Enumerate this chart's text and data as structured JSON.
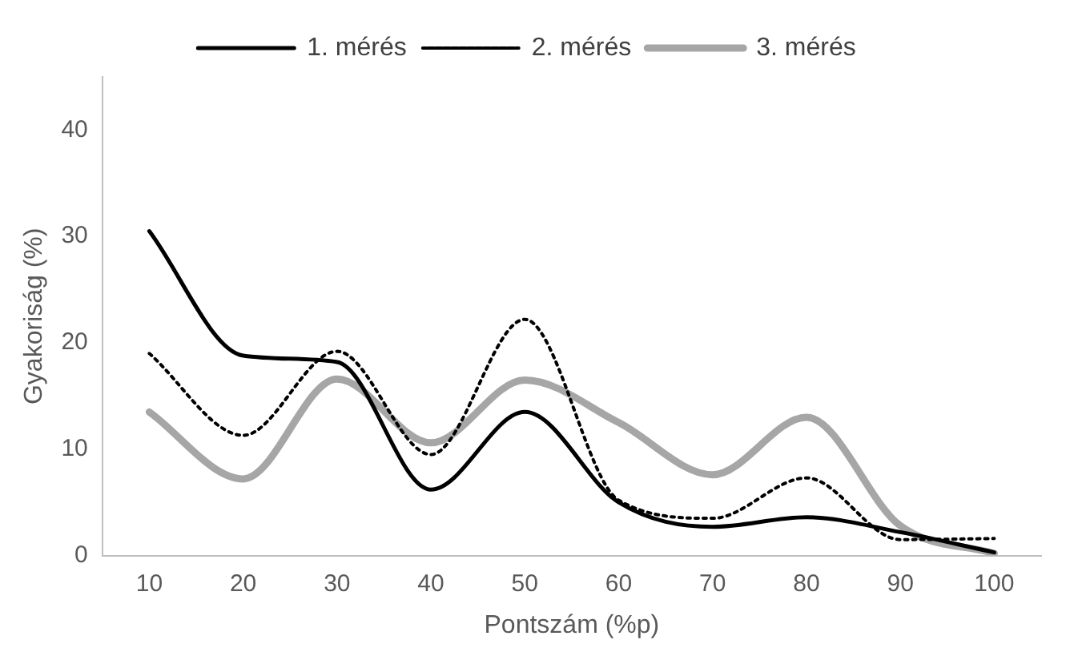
{
  "chart_data": {
    "type": "line",
    "xlabel": "Pontszám (%p)",
    "ylabel": "Gyakoriság (%)",
    "categories": [
      "10",
      "20",
      "30",
      "40",
      "50",
      "60",
      "70",
      "80",
      "90",
      "100"
    ],
    "series": [
      {
        "name": "1. mérés",
        "color": "#000000",
        "line_style": "solid",
        "values": [
          30.5,
          18.8,
          18.2,
          6.2,
          13.5,
          5,
          2.7,
          3.6,
          2.2,
          0.3
        ]
      },
      {
        "name": "2. mérés",
        "color": "#000000",
        "line_style": "dotted",
        "values": [
          19,
          11.3,
          19.2,
          9.5,
          22.2,
          5.2,
          3.5,
          7.3,
          1.5,
          1.6
        ]
      },
      {
        "name": "3. mérés",
        "color": "#a6a6a6",
        "line_style": "solid",
        "values": [
          13.5,
          7.2,
          16.6,
          10.6,
          16.5,
          12.5,
          7.6,
          13,
          2.8,
          0.2
        ]
      }
    ],
    "ylim": [
      0,
      45
    ],
    "yticks": [
      0,
      10,
      20,
      30,
      40
    ],
    "grid": false,
    "legend": "top",
    "marker": "none"
  }
}
